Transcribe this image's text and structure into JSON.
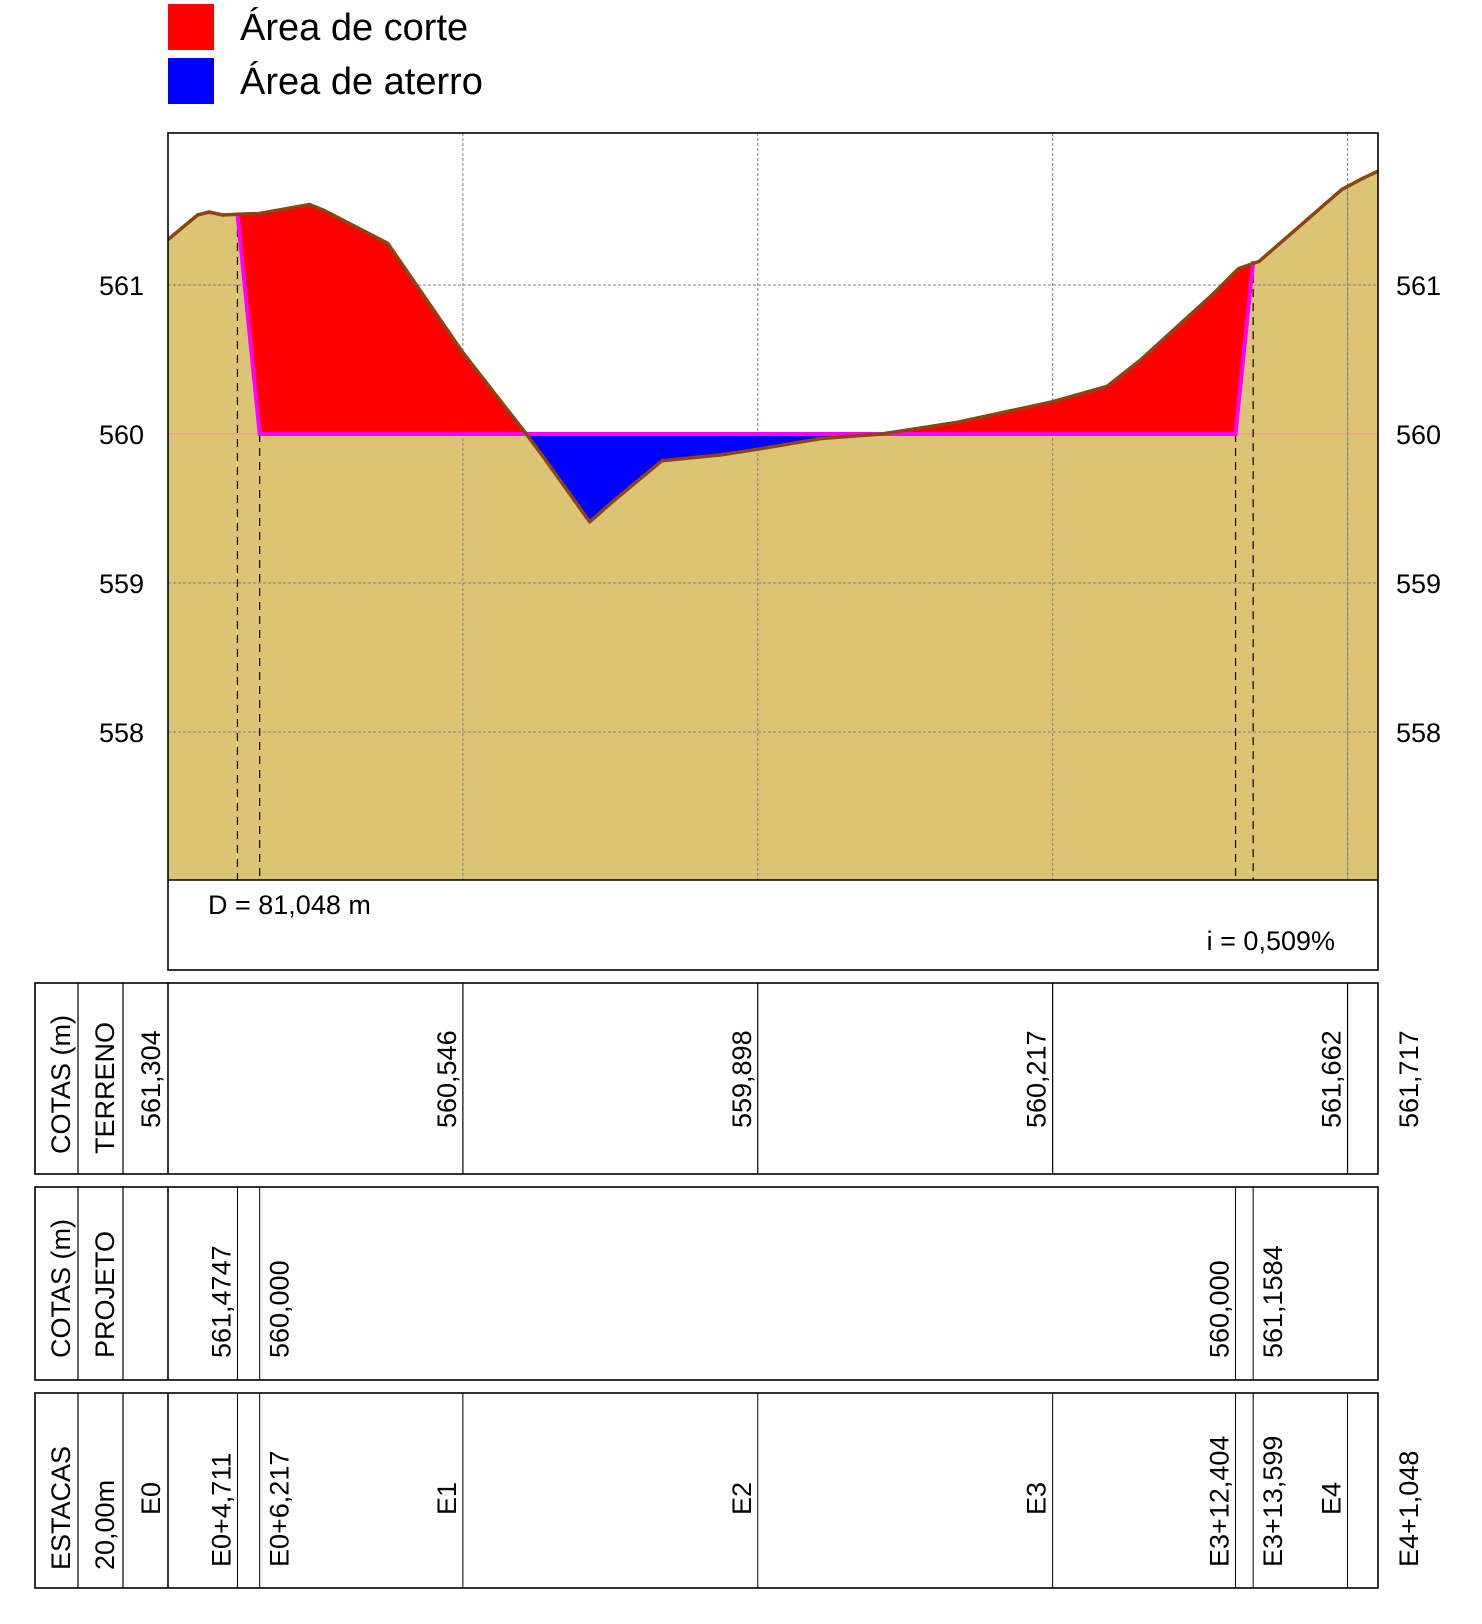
{
  "legend": [
    {
      "label": "Área de corte",
      "color": "#ff0000"
    },
    {
      "label": "Área de aterro",
      "color": "#0000ff"
    }
  ],
  "colors": {
    "terrain_fill": "#dcc475",
    "terrain_line": "#8b4513",
    "project_line": "#ff00ff",
    "cut": "#ff0000",
    "fill": "#0000ff",
    "grid": "#808080",
    "highlight_text": "#ff00ff"
  },
  "info": {
    "distance_label": "D = 81,048 m",
    "slope_label": "i = 0,509%"
  },
  "chart_data": {
    "type": "area",
    "xlabel": "",
    "ylabel": "",
    "xlim": [
      0,
      81.048
    ],
    "ylim": [
      557,
      562
    ],
    "y_ticks": [
      558,
      559,
      560,
      561
    ],
    "y_tick_labels": [
      "558",
      "559",
      "560",
      "561"
    ],
    "x_grid": [
      0,
      20,
      40,
      60,
      80
    ],
    "grid": true,
    "terrain": {
      "x": [
        0,
        2.0,
        2.8,
        3.7,
        4.711,
        6.217,
        9.6,
        10.6,
        14.9,
        20,
        24.3,
        25.5,
        28.6,
        30.2,
        33.5,
        37.5,
        40,
        44.3,
        48.4,
        53.6,
        60,
        63.7,
        66.0,
        71.0,
        72.6,
        74.0,
        79.6,
        81.048
      ],
      "y": [
        561.304,
        561.47,
        561.49,
        561.47,
        561.4747,
        561.48,
        561.54,
        561.5,
        561.28,
        560.546,
        560.0,
        559.84,
        559.41,
        559.55,
        559.82,
        559.86,
        559.898,
        559.97,
        560.0,
        560.08,
        560.217,
        560.32,
        560.5,
        560.95,
        561.11,
        561.1584,
        561.64,
        561.717
      ]
    },
    "project": {
      "x": [
        4.711,
        6.217,
        72.404,
        73.599
      ],
      "y": [
        561.4747,
        560.0,
        560.0,
        561.1584
      ]
    },
    "areas": [
      {
        "name": "Área de corte",
        "x_range": [
          4.711,
          24.3
        ]
      },
      {
        "name": "Área de aterro",
        "x_range": [
          24.3,
          48.4
        ]
      },
      {
        "name": "Área de corte",
        "x_range": [
          48.4,
          73.599
        ]
      }
    ],
    "stations": [
      "E0",
      "E1",
      "E2",
      "E3",
      "E4"
    ]
  },
  "table": {
    "terreno": {
      "header1": "COTAS (m)",
      "header2": "TERRENO",
      "values": [
        {
          "x": 0,
          "label": "561,304"
        },
        {
          "x": 20,
          "label": "560,546"
        },
        {
          "x": 40,
          "label": "559,898"
        },
        {
          "x": 60,
          "label": "560,217"
        },
        {
          "x": 80,
          "label": "561,662"
        }
      ],
      "end_value": "561,717"
    },
    "projeto": {
      "header1": "COTAS (m)",
      "header2": "PROJETO",
      "values": [
        {
          "x": 4.711,
          "label": "561,4747"
        },
        {
          "x": 6.217,
          "label": "560,000"
        },
        {
          "x": 72.404,
          "label": "560,000"
        },
        {
          "x": 73.599,
          "label": "561,1584"
        }
      ]
    },
    "estacas": {
      "header1": "ESTACAS",
      "header2": "20,00m",
      "values": [
        {
          "x": 0,
          "label": "E0",
          "highlight": false
        },
        {
          "x": 4.711,
          "label": "E0+4,711",
          "highlight": true
        },
        {
          "x": 6.217,
          "label": "E0+6,217",
          "highlight": true
        },
        {
          "x": 20,
          "label": "E1",
          "highlight": false
        },
        {
          "x": 40,
          "label": "E2",
          "highlight": false
        },
        {
          "x": 60,
          "label": "E3",
          "highlight": false
        },
        {
          "x": 72.404,
          "label": "E3+12,404",
          "highlight": true
        },
        {
          "x": 73.599,
          "label": "E3+13,599",
          "highlight": true
        },
        {
          "x": 80,
          "label": "E4",
          "highlight": false
        }
      ],
      "end_value": "E4+1,048"
    }
  }
}
